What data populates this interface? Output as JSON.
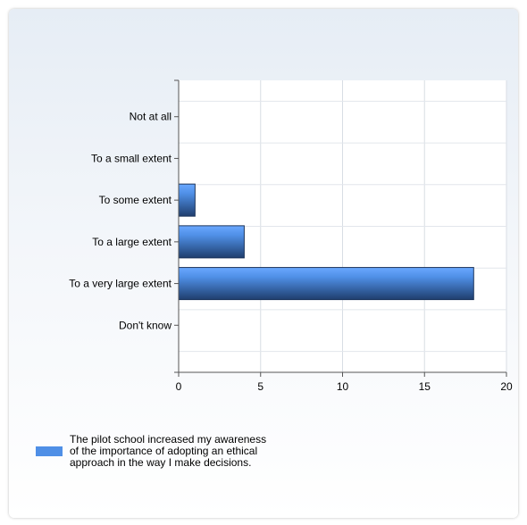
{
  "chart_data": {
    "type": "bar",
    "orientation": "horizontal",
    "categories": [
      "Not at all",
      "To a small extent",
      "To some extent",
      "To a large extent",
      "To a very large extent",
      "Don't know"
    ],
    "series": [
      {
        "name": "The pilot school increased my awareness of the importance of adopting an ethical approach in the way I make decisions.",
        "values": [
          0,
          0,
          1,
          4,
          18,
          0
        ]
      }
    ],
    "xlim": [
      0,
      20
    ],
    "xticks": [
      "0",
      "5",
      "10",
      "15",
      "20"
    ],
    "grid": true,
    "legend_position": "bottom-left",
    "bar_color": "#4f8fe6"
  }
}
